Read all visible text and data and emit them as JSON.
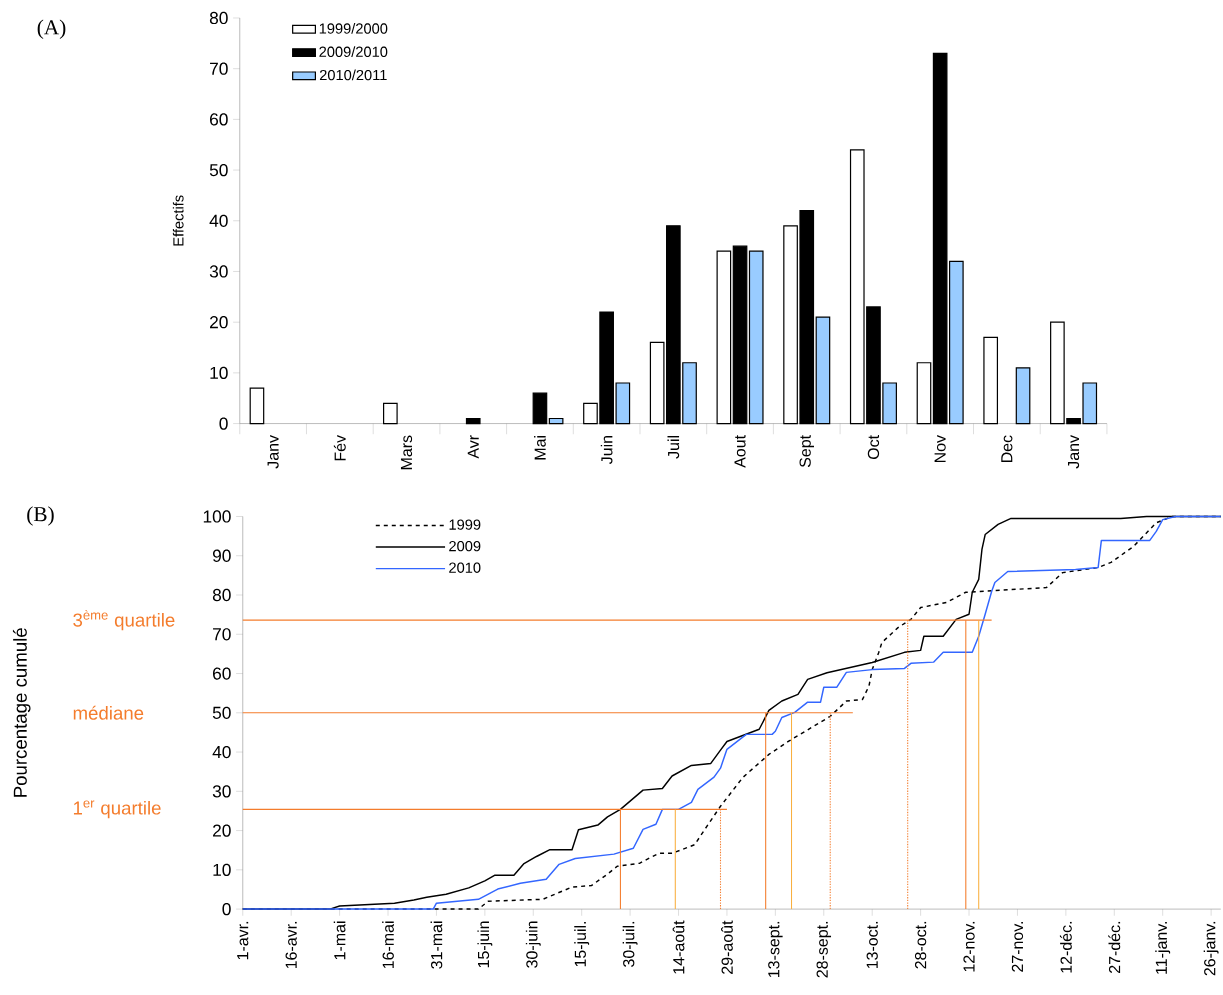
{
  "chart_data": [
    {
      "type": "bar",
      "annotations": [
        "(A)"
      ],
      "ylabel": "Effectifs",
      "categories": [
        "Janv",
        "Fév",
        "Mars",
        "Avr",
        "Mai",
        "Juin",
        "Juil",
        "Aout",
        "Sept",
        "Oct",
        "Nov",
        "Dec",
        "Janv"
      ],
      "series": [
        {
          "name": "1999/2000",
          "color": "#ffffff",
          "values": [
            7,
            null,
            4,
            null,
            null,
            4,
            16,
            34,
            39,
            54,
            12,
            17,
            20
          ]
        },
        {
          "name": "2009/2010",
          "color": "#000000",
          "values": [
            null,
            null,
            null,
            1,
            6,
            22,
            39,
            35,
            42,
            23,
            73,
            null,
            1
          ]
        },
        {
          "name": "2010/2011",
          "color": "#99ccff",
          "values": [
            null,
            null,
            null,
            null,
            1,
            8,
            12,
            34,
            21,
            8,
            32,
            11,
            8
          ]
        }
      ],
      "ylim": [
        0,
        80
      ],
      "yticks": [
        0,
        10,
        20,
        30,
        40,
        50,
        60,
        70,
        80
      ],
      "legend": "top left"
    },
    {
      "type": "line",
      "annotations": [
        "(B)"
      ],
      "ylabel": "Pourcentage cumulé",
      "marker": "none",
      "series": [
        {
          "name": "1999",
          "color": "#000000",
          "line_style": "dashed",
          "x": [
            "2009-04-01",
            "2009-06-13",
            "2009-06-16",
            "2009-07-03",
            "2009-07-07",
            "2009-07-12",
            "2009-07-18",
            "2009-07-23",
            "2009-07-26",
            "2009-08-02",
            "2009-08-05",
            "2009-08-08",
            "2009-08-12",
            "2009-08-19",
            "2009-08-21",
            "2009-08-27",
            "2009-09-03",
            "2009-09-11",
            "2009-09-17",
            "2009-09-30",
            "2009-10-05",
            "2009-10-10",
            "2009-10-12",
            "2009-10-13",
            "2009-10-15",
            "2009-10-16",
            "2009-10-21",
            "2009-10-25",
            "2009-10-28",
            "2009-11-05",
            "2009-11-11",
            "2009-12-06",
            "2009-12-11",
            "2009-12-22",
            "2009-12-26",
            "2010-01-02",
            "2010-01-09",
            "2010-01-14",
            "2010-01-29"
          ],
          "values": [
            0,
            0,
            2,
            2.5,
            3.9,
            5.6,
            6.0,
            8.9,
            10.9,
            11.7,
            13,
            14.2,
            14.2,
            16.4,
            18.9,
            26.2,
            33.6,
            39.4,
            42.7,
            49.1,
            53,
            53.4,
            56.8,
            61,
            65.3,
            67.9,
            71.7,
            73.8,
            76.8,
            78.1,
            80.7,
            81.9,
            85.7,
            87,
            88.3,
            92.4,
            98.4,
            100,
            100
          ]
        },
        {
          "name": "2009",
          "color": "#000000",
          "line_style": "solid",
          "x": [
            "2009-04-01",
            "2009-04-28",
            "2009-05-01",
            "2009-05-18",
            "2009-05-24",
            "2009-05-28",
            "2009-06-03",
            "2009-06-10",
            "2009-06-15",
            "2009-06-18",
            "2009-06-24",
            "2009-06-27",
            "2009-07-01",
            "2009-07-05",
            "2009-07-12",
            "2009-07-14",
            "2009-07-20",
            "2009-07-23",
            "2009-07-27",
            "2009-07-31",
            "2009-08-03",
            "2009-08-09",
            "2009-08-12",
            "2009-08-18",
            "2009-08-24",
            "2009-08-27",
            "2009-08-29",
            "2009-09-08",
            "2009-09-11",
            "2009-09-15",
            "2009-09-20",
            "2009-09-23",
            "2009-09-29",
            "2009-10-13",
            "2009-10-23",
            "2009-10-28",
            "2009-10-29",
            "2009-11-04",
            "2009-11-08",
            "2009-11-12",
            "2009-11-13",
            "2009-11-15",
            "2009-11-16",
            "2009-11-17",
            "2009-11-21",
            "2009-11-25",
            "2009-12-29",
            "2010-01-06",
            "2010-01-29"
          ],
          "values": [
            0,
            0,
            0.8,
            1.5,
            2.3,
            3.0,
            3.8,
            5.4,
            7.2,
            8.6,
            8.6,
            11.5,
            13.4,
            15.1,
            15.1,
            20.2,
            21.4,
            23.5,
            25.4,
            28.2,
            30.3,
            30.7,
            33.9,
            36.6,
            37.1,
            40.5,
            42.7,
            45.8,
            50.6,
            53,
            54.7,
            58.5,
            60.2,
            62.8,
            65.4,
            65.9,
            69.5,
            69.5,
            73.8,
            75.1,
            80.7,
            84,
            91.6,
            95.4,
            98,
            99.5,
            99.5,
            100,
            100
          ]
        },
        {
          "name": "2010",
          "color": "#3366ff",
          "line_style": "solid",
          "x": [
            "2009-04-01",
            "2009-05-30",
            "2009-05-31",
            "2009-06-13",
            "2009-06-19",
            "2009-06-26",
            "2009-07-04",
            "2009-07-08",
            "2009-07-13",
            "2009-07-25",
            "2009-07-31",
            "2009-08-03",
            "2009-08-07",
            "2009-08-09",
            "2009-08-14",
            "2009-08-18",
            "2009-08-20",
            "2009-08-25",
            "2009-08-27",
            "2009-08-29",
            "2009-09-04",
            "2009-09-12",
            "2009-09-13",
            "2009-09-15",
            "2009-09-19",
            "2009-09-23",
            "2009-09-27",
            "2009-09-28",
            "2009-10-02",
            "2009-10-05",
            "2009-10-13",
            "2009-10-23",
            "2009-10-25",
            "2009-11-01",
            "2009-11-04",
            "2009-11-13",
            "2009-11-15",
            "2009-11-17",
            "2009-11-19",
            "2009-11-20",
            "2009-11-24",
            "2009-12-15",
            "2009-12-22",
            "2009-12-23",
            "2010-01-07",
            "2010-01-09",
            "2010-01-11",
            "2010-01-15",
            "2010-01-29"
          ],
          "values": [
            0,
            0,
            1.5,
            2.5,
            5.1,
            6.6,
            7.6,
            11.4,
            12.9,
            14,
            15.5,
            20.3,
            21.6,
            25.4,
            25.4,
            27.2,
            30.5,
            33.6,
            35.9,
            40.7,
            44.5,
            44.5,
            45.3,
            48.8,
            50.1,
            52.7,
            52.7,
            56.5,
            56.5,
            60.3,
            61,
            61.3,
            62.6,
            62.9,
            65.4,
            65.4,
            69.5,
            75.1,
            80.9,
            83.2,
            86,
            86.5,
            87,
            93.9,
            93.9,
            96.2,
            99.2,
            100,
            100
          ]
        }
      ],
      "xlim": [
        "2009-04-01",
        "2010-01-29"
      ],
      "xticks": [
        {
          "value": "2009-04-01",
          "label": "1-avr."
        },
        {
          "value": "2009-04-16",
          "label": "16-avr."
        },
        {
          "value": "2009-05-01",
          "label": "1-mai"
        },
        {
          "value": "2009-05-16",
          "label": "16-mai"
        },
        {
          "value": "2009-05-31",
          "label": "31-mai"
        },
        {
          "value": "2009-06-15",
          "label": "15-juin"
        },
        {
          "value": "2009-06-30",
          "label": "30-juin"
        },
        {
          "value": "2009-07-15",
          "label": "15-juil."
        },
        {
          "value": "2009-07-30",
          "label": "30-juil."
        },
        {
          "value": "2009-08-14",
          "label": "14-août"
        },
        {
          "value": "2009-08-29",
          "label": "29-août"
        },
        {
          "value": "2009-09-13",
          "label": "13-sept."
        },
        {
          "value": "2009-09-28",
          "label": "28-sept."
        },
        {
          "value": "2009-10-13",
          "label": "13-oct."
        },
        {
          "value": "2009-10-28",
          "label": "28-oct."
        },
        {
          "value": "2009-11-12",
          "label": "12-nov."
        },
        {
          "value": "2009-11-27",
          "label": "27-nov."
        },
        {
          "value": "2009-12-12",
          "label": "12-déc."
        },
        {
          "value": "2009-12-27",
          "label": "27-déc."
        },
        {
          "value": "2010-01-11",
          "label": "11-janv."
        },
        {
          "value": "2010-01-26",
          "label": "26-janv."
        }
      ],
      "ylim": [
        0,
        100
      ],
      "yticks": [
        0,
        10,
        20,
        30,
        40,
        50,
        60,
        70,
        80,
        90,
        100
      ],
      "legend": "top left",
      "ref_lines": [
        {
          "axis": "y",
          "value": 25.4,
          "label": "1$^{er}$ quartile",
          "color": "#f47c2c"
        },
        {
          "axis": "y",
          "value": 50,
          "label": "médiane",
          "color": "#f47c2c"
        },
        {
          "axis": "y",
          "value": 73.6,
          "label": "3$^{ème}$ quartile",
          "color": "#f47c2c"
        },
        {
          "axis": "x",
          "value": "2009-07-27",
          "color": "#f47c2c",
          "line_style": "solid"
        },
        {
          "axis": "x",
          "value": "2009-08-13",
          "color": "#f9b040",
          "line_style": "solid"
        },
        {
          "axis": "x",
          "value": "2009-08-27",
          "color": "#f47c2c",
          "line_style": "dotted"
        },
        {
          "axis": "x",
          "value": "2009-09-10",
          "color": "#f47c2c",
          "line_style": "solid"
        },
        {
          "axis": "x",
          "value": "2009-09-18",
          "color": "#f9b040",
          "line_style": "solid"
        },
        {
          "axis": "x",
          "value": "2009-09-30",
          "color": "#f47c2c",
          "line_style": "dotted"
        },
        {
          "axis": "x",
          "value": "2009-10-24",
          "color": "#f47c2c",
          "line_style": "dotted"
        },
        {
          "axis": "x",
          "value": "2009-11-11",
          "color": "#f47c2c",
          "line_style": "solid"
        },
        {
          "axis": "x",
          "value": "2009-11-15",
          "color": "#f9b040",
          "line_style": "solid"
        }
      ]
    }
  ]
}
